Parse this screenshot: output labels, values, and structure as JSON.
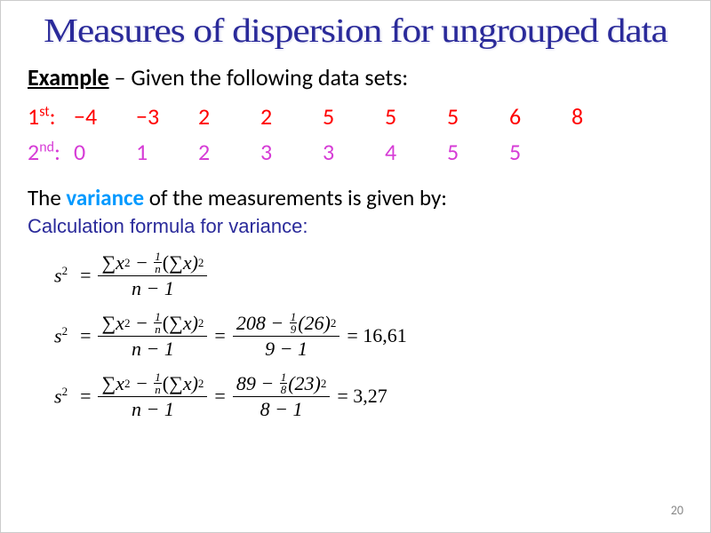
{
  "title": "Measures of dispersion for ungrouped data",
  "example": {
    "label": "Example",
    "tail": " – Given the following data sets:"
  },
  "rows": {
    "r1": {
      "label": "1",
      "ord": "st",
      "colon": ":",
      "vals": [
        "−4",
        "−3",
        "2",
        "2",
        "5",
        "5",
        "5",
        "6",
        "8"
      ],
      "color": "#ff0000"
    },
    "r2": {
      "label": "2",
      "ord": "nd",
      "colon": ":",
      "vals": [
        "0",
        "1",
        "2",
        "3",
        "3",
        "4",
        "5",
        "5",
        ""
      ],
      "color": "#d63cd6"
    }
  },
  "variance": {
    "pre": "The ",
    "word": "variance",
    "post": " of the measurements is given by:"
  },
  "calc_label": "Calculation formula for variance:",
  "formula": {
    "lhs": "s",
    "exp": "2",
    "eq": "=",
    "generic_num_a": "∑",
    "generic_num_b": "x",
    "generic_num_c": "(∑",
    "generic_num_d": "x)",
    "minus": "−",
    "n": "n",
    "one": "1",
    "den": "n − 1"
  },
  "calc1": {
    "num_sumsq": "208",
    "inv_n_top": "1",
    "inv_n_bot": "9",
    "sum": "(26)",
    "den": "9 − 1",
    "result": "= 16,61"
  },
  "calc2": {
    "num_sumsq": "89",
    "inv_n_top": "1",
    "inv_n_bot": "8",
    "sum": "(23)",
    "den": "8 − 1",
    "result": "= 3,27"
  },
  "page": "20"
}
